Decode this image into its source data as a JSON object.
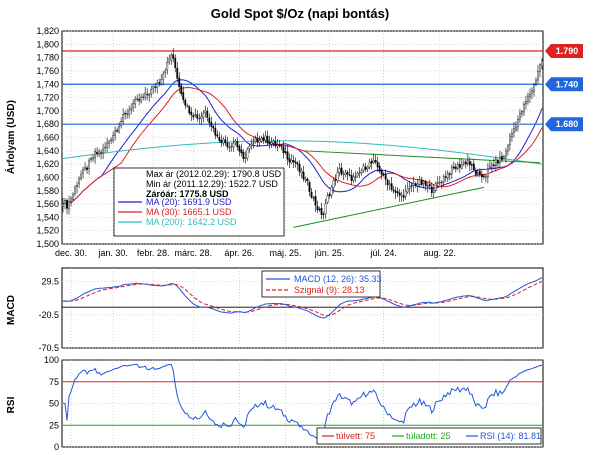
{
  "chart_data": [
    {
      "type": "candlestick",
      "title": "Gold Spot $/Oz (napi bontás)",
      "ylabel": "Árfolyam (USD)",
      "ylim": [
        1500,
        1820
      ],
      "yticks": [
        "1,500",
        "1,520",
        "1,540",
        "1,560",
        "1,580",
        "1,600",
        "1,620",
        "1,640",
        "1,660",
        "1,680",
        "1,700",
        "1,720",
        "1,740",
        "1,760",
        "1,780",
        "1,800",
        "1,820"
      ],
      "xticks": [
        "dec. 30.",
        "jan. 30.",
        "febr. 28.",
        "márc. 28.",
        "ápr. 26.",
        "máj. 25.",
        "jún. 25.",
        "júl. 24.",
        "aug. 22."
      ],
      "grid": true,
      "info_lines": [
        "Max ár (2012.02.29): 1790.8 USD",
        "Min ár (2011.12.29): 1522.7 USD",
        "Záróár: 1775.8 USD"
      ],
      "legend": [
        {
          "label": "MA (20): 1691.9 USD",
          "color": "#2222cc"
        },
        {
          "label": "MA (30): 1665.1 USD",
          "color": "#dd2222"
        },
        {
          "label": "MA (200): 1642.2 USD",
          "color": "#33bbbb"
        }
      ],
      "levels": [
        {
          "label": "1.790",
          "value": 1790,
          "color": "#dd2222"
        },
        {
          "label": "1.740",
          "value": 1740,
          "color": "#2266dd"
        },
        {
          "label": "1.680",
          "value": 1680,
          "color": "#2266dd"
        }
      ],
      "close_anchors": [
        [
          0,
          1565
        ],
        [
          2,
          1558
        ],
        [
          5,
          1575
        ],
        [
          8,
          1600
        ],
        [
          12,
          1615
        ],
        [
          16,
          1635
        ],
        [
          20,
          1640
        ],
        [
          25,
          1665
        ],
        [
          30,
          1690
        ],
        [
          35,
          1710
        ],
        [
          40,
          1720
        ],
        [
          44,
          1730
        ],
        [
          48,
          1745
        ],
        [
          52,
          1770
        ],
        [
          54,
          1785
        ],
        [
          56,
          1765
        ],
        [
          58,
          1738
        ],
        [
          60,
          1720
        ],
        [
          62,
          1705
        ],
        [
          65,
          1695
        ],
        [
          68,
          1690
        ],
        [
          71,
          1700
        ],
        [
          74,
          1680
        ],
        [
          77,
          1660
        ],
        [
          80,
          1655
        ],
        [
          83,
          1648
        ],
        [
          86,
          1655
        ],
        [
          88,
          1640
        ],
        [
          90,
          1625
        ],
        [
          92,
          1642
        ],
        [
          95,
          1650
        ],
        [
          98,
          1660
        ],
        [
          101,
          1658
        ],
        [
          104,
          1652
        ],
        [
          107,
          1648
        ],
        [
          110,
          1640
        ],
        [
          113,
          1628
        ],
        [
          116,
          1622
        ],
        [
          118,
          1610
        ],
        [
          120,
          1600
        ],
        [
          122,
          1590
        ],
        [
          124,
          1575
        ],
        [
          126,
          1560
        ],
        [
          128,
          1548
        ],
        [
          130,
          1545
        ],
        [
          132,
          1570
        ],
        [
          134,
          1585
        ],
        [
          136,
          1600
        ],
        [
          138,
          1610
        ],
        [
          140,
          1606
        ],
        [
          143,
          1600
        ],
        [
          146,
          1598
        ],
        [
          149,
          1610
        ],
        [
          152,
          1620
        ],
        [
          155,
          1622
        ],
        [
          158,
          1612
        ],
        [
          160,
          1600
        ],
        [
          163,
          1590
        ],
        [
          166,
          1575
        ],
        [
          169,
          1572
        ],
        [
          172,
          1580
        ],
        [
          175,
          1590
        ],
        [
          178,
          1592
        ],
        [
          181,
          1588
        ],
        [
          184,
          1582
        ],
        [
          187,
          1590
        ],
        [
          190,
          1600
        ],
        [
          193,
          1608
        ],
        [
          196,
          1615
        ],
        [
          199,
          1620
        ],
        [
          202,
          1625
        ],
        [
          205,
          1610
        ],
        [
          208,
          1600
        ],
        [
          211,
          1605
        ],
        [
          214,
          1618
        ],
        [
          217,
          1625
        ],
        [
          220,
          1630
        ],
        [
          223,
          1660
        ],
        [
          226,
          1680
        ],
        [
          229,
          1700
        ],
        [
          232,
          1720
        ],
        [
          235,
          1738
        ],
        [
          237,
          1760
        ],
        [
          239,
          1776
        ]
      ],
      "ma_periods": [
        20,
        30,
        200
      ],
      "n_bars": 240
    },
    {
      "type": "line",
      "ylabel": "MACD",
      "ylim": [
        -70.5,
        50
      ],
      "yticks": [
        "29.5",
        "-20.5",
        "-70.5"
      ],
      "grid": true,
      "legend": [
        {
          "label": "MACD (12, 26): 35.33",
          "color": "#2255dd"
        },
        {
          "label": "Szignál (9): 28.13",
          "color": "#dd2222"
        }
      ]
    },
    {
      "type": "line",
      "ylabel": "RSI",
      "ylim": [
        0,
        100
      ],
      "yticks": [
        "100",
        "75",
        "50",
        "25",
        "0"
      ],
      "grid": true,
      "legend": [
        {
          "label": "túlvett: 75",
          "color": "#dd2222"
        },
        {
          "label": "túladott: 25",
          "color": "#22aa22"
        },
        {
          "label": "RSI (14): 81.81",
          "color": "#2255dd"
        }
      ],
      "overbought": 75,
      "oversold": 25
    }
  ]
}
